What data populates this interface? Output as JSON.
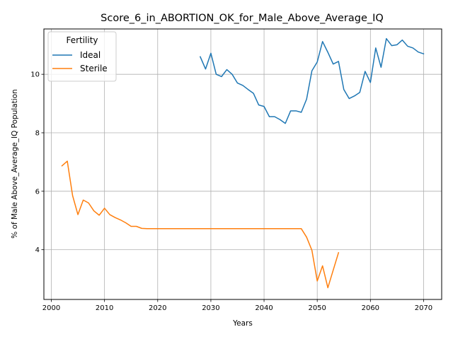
{
  "chart_data": {
    "type": "line",
    "title": "Score_6_in_ABORTION_OK_for_Male_Above_Average_IQ",
    "xlabel": "Years",
    "ylabel": "% of Male Above_Average_IQ Population",
    "xlim": [
      1998.6,
      2073.4
    ],
    "ylim": [
      2.3,
      11.55
    ],
    "xticks": [
      2000,
      2010,
      2020,
      2030,
      2040,
      2050,
      2060,
      2070
    ],
    "yticks": [
      4,
      6,
      8,
      10
    ],
    "grid": true,
    "legend": {
      "title": "Fertility",
      "placement": "top-left"
    },
    "series": [
      {
        "name": "Ideal",
        "color": "#1f77b4",
        "x": [
          2028,
          2029,
          2030,
          2031,
          2032,
          2033,
          2034,
          2035,
          2036,
          2037,
          2038,
          2039,
          2040,
          2041,
          2042,
          2043,
          2044,
          2045,
          2046,
          2047,
          2048,
          2049,
          2050,
          2051,
          2052,
          2053,
          2054,
          2055,
          2056,
          2057,
          2058,
          2059,
          2060,
          2061,
          2062,
          2063,
          2064,
          2065,
          2066,
          2067,
          2068,
          2069,
          2070
        ],
        "y": [
          10.6,
          10.18,
          10.72,
          10.0,
          9.92,
          10.16,
          10.0,
          9.7,
          9.62,
          9.48,
          9.35,
          8.95,
          8.9,
          8.55,
          8.55,
          8.45,
          8.32,
          8.75,
          8.75,
          8.7,
          9.15,
          10.12,
          10.42,
          11.12,
          10.75,
          10.35,
          10.44,
          9.48,
          9.17,
          9.26,
          9.38,
          10.1,
          9.72,
          10.9,
          10.24,
          11.22,
          10.98,
          11.01,
          11.17,
          10.96,
          10.9,
          10.76,
          10.7
        ]
      },
      {
        "name": "Sterile",
        "color": "#ff7f0e",
        "x": [
          2002,
          2003,
          2004,
          2005,
          2006,
          2007,
          2008,
          2009,
          2010,
          2011,
          2012,
          2013,
          2014,
          2015,
          2016,
          2017,
          2018,
          2019,
          2020,
          2021,
          2022,
          2023,
          2024,
          2025,
          2026,
          2027,
          2028,
          2029,
          2030,
          2031,
          2032,
          2033,
          2034,
          2035,
          2036,
          2037,
          2038,
          2039,
          2040,
          2041,
          2042,
          2043,
          2044,
          2045,
          2046,
          2047,
          2048,
          2049,
          2050,
          2051,
          2052,
          2053,
          2054
        ],
        "y": [
          6.87,
          7.03,
          5.85,
          5.2,
          5.7,
          5.6,
          5.33,
          5.18,
          5.42,
          5.2,
          5.1,
          5.02,
          4.92,
          4.8,
          4.8,
          4.73,
          4.72,
          4.72,
          4.72,
          4.72,
          4.72,
          4.72,
          4.72,
          4.72,
          4.72,
          4.72,
          4.72,
          4.72,
          4.72,
          4.72,
          4.72,
          4.72,
          4.72,
          4.72,
          4.72,
          4.72,
          4.72,
          4.72,
          4.72,
          4.72,
          4.72,
          4.72,
          4.72,
          4.72,
          4.72,
          4.72,
          4.43,
          3.98,
          2.93,
          3.45,
          2.7,
          3.3,
          3.9
        ]
      }
    ]
  }
}
